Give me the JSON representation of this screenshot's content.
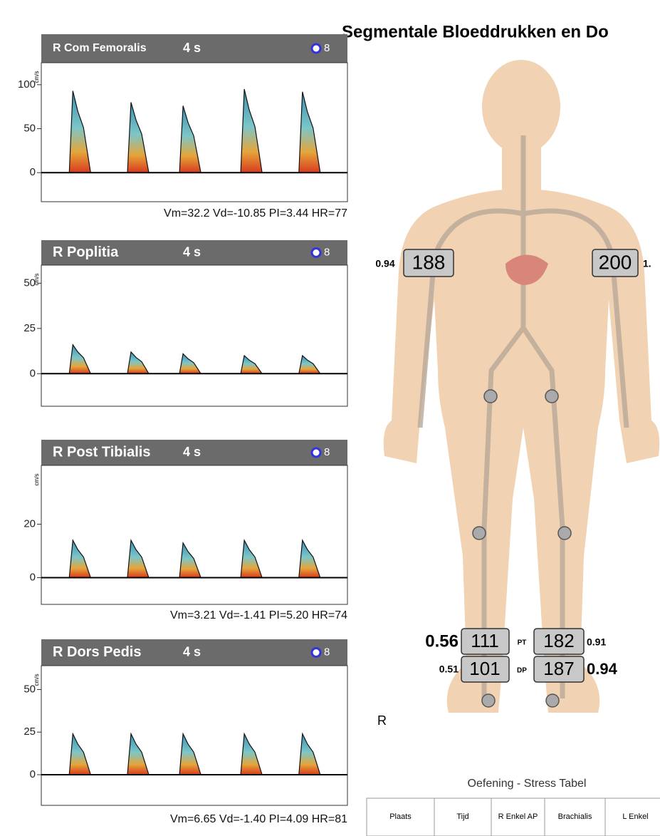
{
  "title": "Segmentale Bloeddrukken en Do",
  "panels": [
    {
      "label": "R Com Femoralis",
      "duration": "4 s",
      "probe": "8",
      "unit": "cm/s",
      "ylim": [
        -33,
        125
      ],
      "yticks": [
        0,
        50,
        100
      ],
      "peaks": [
        93,
        80,
        76,
        95,
        92
      ],
      "stats": "Vm=32.2  Vd=-10.85  PI=3.44  HR=77"
    },
    {
      "label": "R Poplitia",
      "duration": "4 s",
      "probe": "8",
      "unit": "cm/s",
      "ylim": [
        -18,
        60
      ],
      "yticks": [
        0,
        25,
        50
      ],
      "peaks": [
        16,
        12,
        11,
        10,
        10
      ]
    },
    {
      "label": "R Post Tibialis",
      "duration": "4 s",
      "probe": "8",
      "unit": "cm/s",
      "ylim": [
        -10,
        42
      ],
      "yticks": [
        0,
        20
      ],
      "peaks": [
        14,
        14,
        13,
        14,
        14
      ],
      "stats": "Vm=3.21  Vd=-1.41  PI=5.20  HR=74"
    },
    {
      "label": "R Dors Pedis",
      "duration": "4 s",
      "probe": "8",
      "unit": "cm/s",
      "ylim": [
        -18,
        64
      ],
      "yticks": [
        0,
        25,
        50
      ],
      "peaks": [
        24,
        24,
        24,
        24,
        24
      ],
      "stats": "Vm=6.65  Vd=-1.40  PI=4.09  HR=81"
    }
  ],
  "body": {
    "side": "R",
    "right_arm": {
      "index": 0.94,
      "pressure": 188
    },
    "left_arm": {
      "index": "1.",
      "pressure": 200
    },
    "pt": {
      "label": "PT",
      "right_index": 0.56,
      "right_pressure": 111,
      "left_pressure": 182,
      "left_index": 0.91
    },
    "dp": {
      "label": "DP",
      "right_index": 0.51,
      "right_pressure": 101,
      "left_pressure": 187,
      "left_index": 0.94
    }
  },
  "table": {
    "caption": "Oefening - Stress Tabel",
    "headers": [
      "Plaats",
      "Tijd",
      "R Enkel AP",
      "Brachialis",
      "L Enkel"
    ]
  }
}
